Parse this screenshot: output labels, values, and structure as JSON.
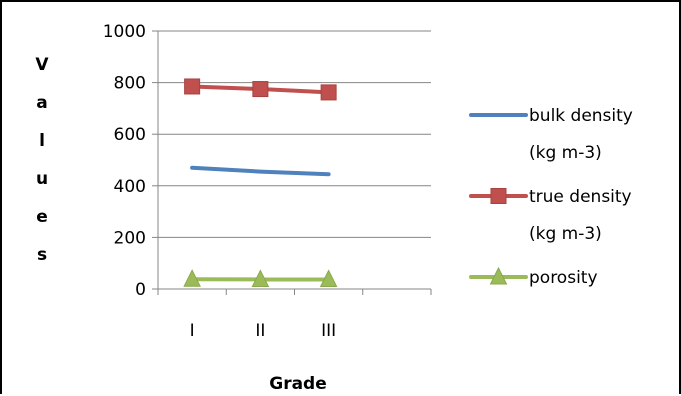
{
  "chart_data": {
    "type": "line",
    "title": "",
    "xlabel": "Grade",
    "ylabel": "V a l u e s",
    "ylabel_chars": [
      "V",
      "a",
      "l",
      "u",
      "e",
      "s"
    ],
    "categories": [
      "I",
      "II",
      "III"
    ],
    "ylim": [
      0,
      1000
    ],
    "yticks": [
      0,
      200,
      400,
      600,
      800,
      1000
    ],
    "grid": "horizontal",
    "legend_position": "right",
    "series": [
      {
        "name": "bulk density",
        "name_line2": "(kg m-3)",
        "values": [
          470,
          455,
          445
        ],
        "color": "#4f81bd",
        "marker": "none"
      },
      {
        "name": "true density",
        "name_line2": "(kg m-3)",
        "values": [
          785,
          775,
          762
        ],
        "color": "#c0504d",
        "marker": "square"
      },
      {
        "name": "porosity",
        "name_line2": "",
        "values": [
          38,
          37,
          37
        ],
        "color": "#9bbb59",
        "marker": "triangle"
      }
    ]
  }
}
